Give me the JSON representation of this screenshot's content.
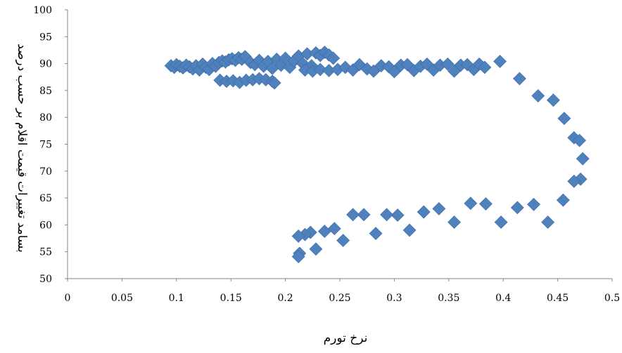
{
  "chart_data": {
    "type": "scatter",
    "xlabel": "نرخ تورم",
    "ylabel": "بسامد تغییرات قیمت اقلام بر حسب درصد",
    "xlim": [
      0,
      0.5
    ],
    "ylim": [
      50,
      100
    ],
    "x_ticks": [
      "0",
      "0.05",
      "0.1",
      "0.15",
      "0.2",
      "0.25",
      "0.3",
      "0.35",
      "0.4",
      "0.45",
      "0.5"
    ],
    "y_ticks": [
      "50",
      "55",
      "60",
      "65",
      "70",
      "75",
      "80",
      "85",
      "90",
      "95",
      "100"
    ],
    "grid": false,
    "legend": "none",
    "marker": "diamond",
    "colors": {
      "marker": "#4F81BD",
      "marker_edge": "#3A6AA6",
      "axis": "#868686"
    },
    "series": [
      {
        "values": [
          [
            0.095,
            89.6
          ],
          [
            0.098,
            89.3
          ],
          [
            0.1,
            89.8
          ],
          [
            0.103,
            89.5
          ],
          [
            0.106,
            89.2
          ],
          [
            0.109,
            89.7
          ],
          [
            0.112,
            89.4
          ],
          [
            0.115,
            89.0
          ],
          [
            0.118,
            89.6
          ],
          [
            0.121,
            88.8
          ],
          [
            0.124,
            89.9
          ],
          [
            0.127,
            89.3
          ],
          [
            0.13,
            88.9
          ],
          [
            0.133,
            90.0
          ],
          [
            0.136,
            89.5
          ],
          [
            0.139,
            90.2
          ],
          [
            0.142,
            90.5
          ],
          [
            0.145,
            90.3
          ],
          [
            0.148,
            90.7
          ],
          [
            0.151,
            90.9
          ],
          [
            0.154,
            90.6
          ],
          [
            0.157,
            91.1
          ],
          [
            0.16,
            90.8
          ],
          [
            0.163,
            91.3
          ],
          [
            0.14,
            86.9
          ],
          [
            0.146,
            86.7
          ],
          [
            0.152,
            86.8
          ],
          [
            0.158,
            86.5
          ],
          [
            0.164,
            86.9
          ],
          [
            0.17,
            87.0
          ],
          [
            0.176,
            87.2
          ],
          [
            0.182,
            87.0
          ],
          [
            0.188,
            86.7
          ],
          [
            0.19,
            86.4
          ],
          [
            0.168,
            90.2
          ],
          [
            0.172,
            89.8
          ],
          [
            0.176,
            90.6
          ],
          [
            0.18,
            89.5
          ],
          [
            0.184,
            90.4
          ],
          [
            0.188,
            89.1
          ],
          [
            0.192,
            90.8
          ],
          [
            0.196,
            89.7
          ],
          [
            0.2,
            91.0
          ],
          [
            0.204,
            89.3
          ],
          [
            0.208,
            90.5
          ],
          [
            0.212,
            91.4
          ],
          [
            0.216,
            90.0
          ],
          [
            0.22,
            91.8
          ],
          [
            0.224,
            89.6
          ],
          [
            0.228,
            92.0
          ],
          [
            0.232,
            91.5
          ],
          [
            0.236,
            92.1
          ],
          [
            0.24,
            91.6
          ],
          [
            0.244,
            91.0
          ],
          [
            0.218,
            88.8
          ],
          [
            0.225,
            88.6
          ],
          [
            0.232,
            88.9
          ],
          [
            0.24,
            88.7
          ],
          [
            0.248,
            88.9
          ],
          [
            0.255,
            89.3
          ],
          [
            0.262,
            88.8
          ],
          [
            0.268,
            89.8
          ],
          [
            0.275,
            89.0
          ],
          [
            0.281,
            88.6
          ],
          [
            0.288,
            89.6
          ],
          [
            0.295,
            89.4
          ],
          [
            0.3,
            88.5
          ],
          [
            0.306,
            89.7
          ],
          [
            0.312,
            89.8
          ],
          [
            0.318,
            88.7
          ],
          [
            0.324,
            89.5
          ],
          [
            0.33,
            89.9
          ],
          [
            0.336,
            88.8
          ],
          [
            0.342,
            89.7
          ],
          [
            0.349,
            89.9
          ],
          [
            0.355,
            88.6
          ],
          [
            0.361,
            89.7
          ],
          [
            0.367,
            89.8
          ],
          [
            0.373,
            88.9
          ],
          [
            0.378,
            89.9
          ],
          [
            0.383,
            89.3
          ],
          [
            0.397,
            90.4
          ],
          [
            0.415,
            87.2
          ],
          [
            0.432,
            84.0
          ],
          [
            0.446,
            83.2
          ],
          [
            0.456,
            79.8
          ],
          [
            0.465,
            76.2
          ],
          [
            0.47,
            75.7
          ],
          [
            0.473,
            72.3
          ],
          [
            0.471,
            68.5
          ],
          [
            0.465,
            68.1
          ],
          [
            0.455,
            64.6
          ],
          [
            0.441,
            60.5
          ],
          [
            0.428,
            63.8
          ],
          [
            0.413,
            63.2
          ],
          [
            0.398,
            60.5
          ],
          [
            0.384,
            63.9
          ],
          [
            0.37,
            64.0
          ],
          [
            0.355,
            60.5
          ],
          [
            0.341,
            63.0
          ],
          [
            0.327,
            62.4
          ],
          [
            0.314,
            59.0
          ],
          [
            0.303,
            61.8
          ],
          [
            0.293,
            61.9
          ],
          [
            0.283,
            58.4
          ],
          [
            0.272,
            61.9
          ],
          [
            0.262,
            61.9
          ],
          [
            0.253,
            57.1
          ],
          [
            0.245,
            59.3
          ],
          [
            0.236,
            58.8
          ],
          [
            0.228,
            55.5
          ],
          [
            0.223,
            58.6
          ],
          [
            0.218,
            58.2
          ],
          [
            0.212,
            57.9
          ],
          [
            0.213,
            54.7
          ],
          [
            0.212,
            54.1
          ]
        ]
      }
    ]
  }
}
